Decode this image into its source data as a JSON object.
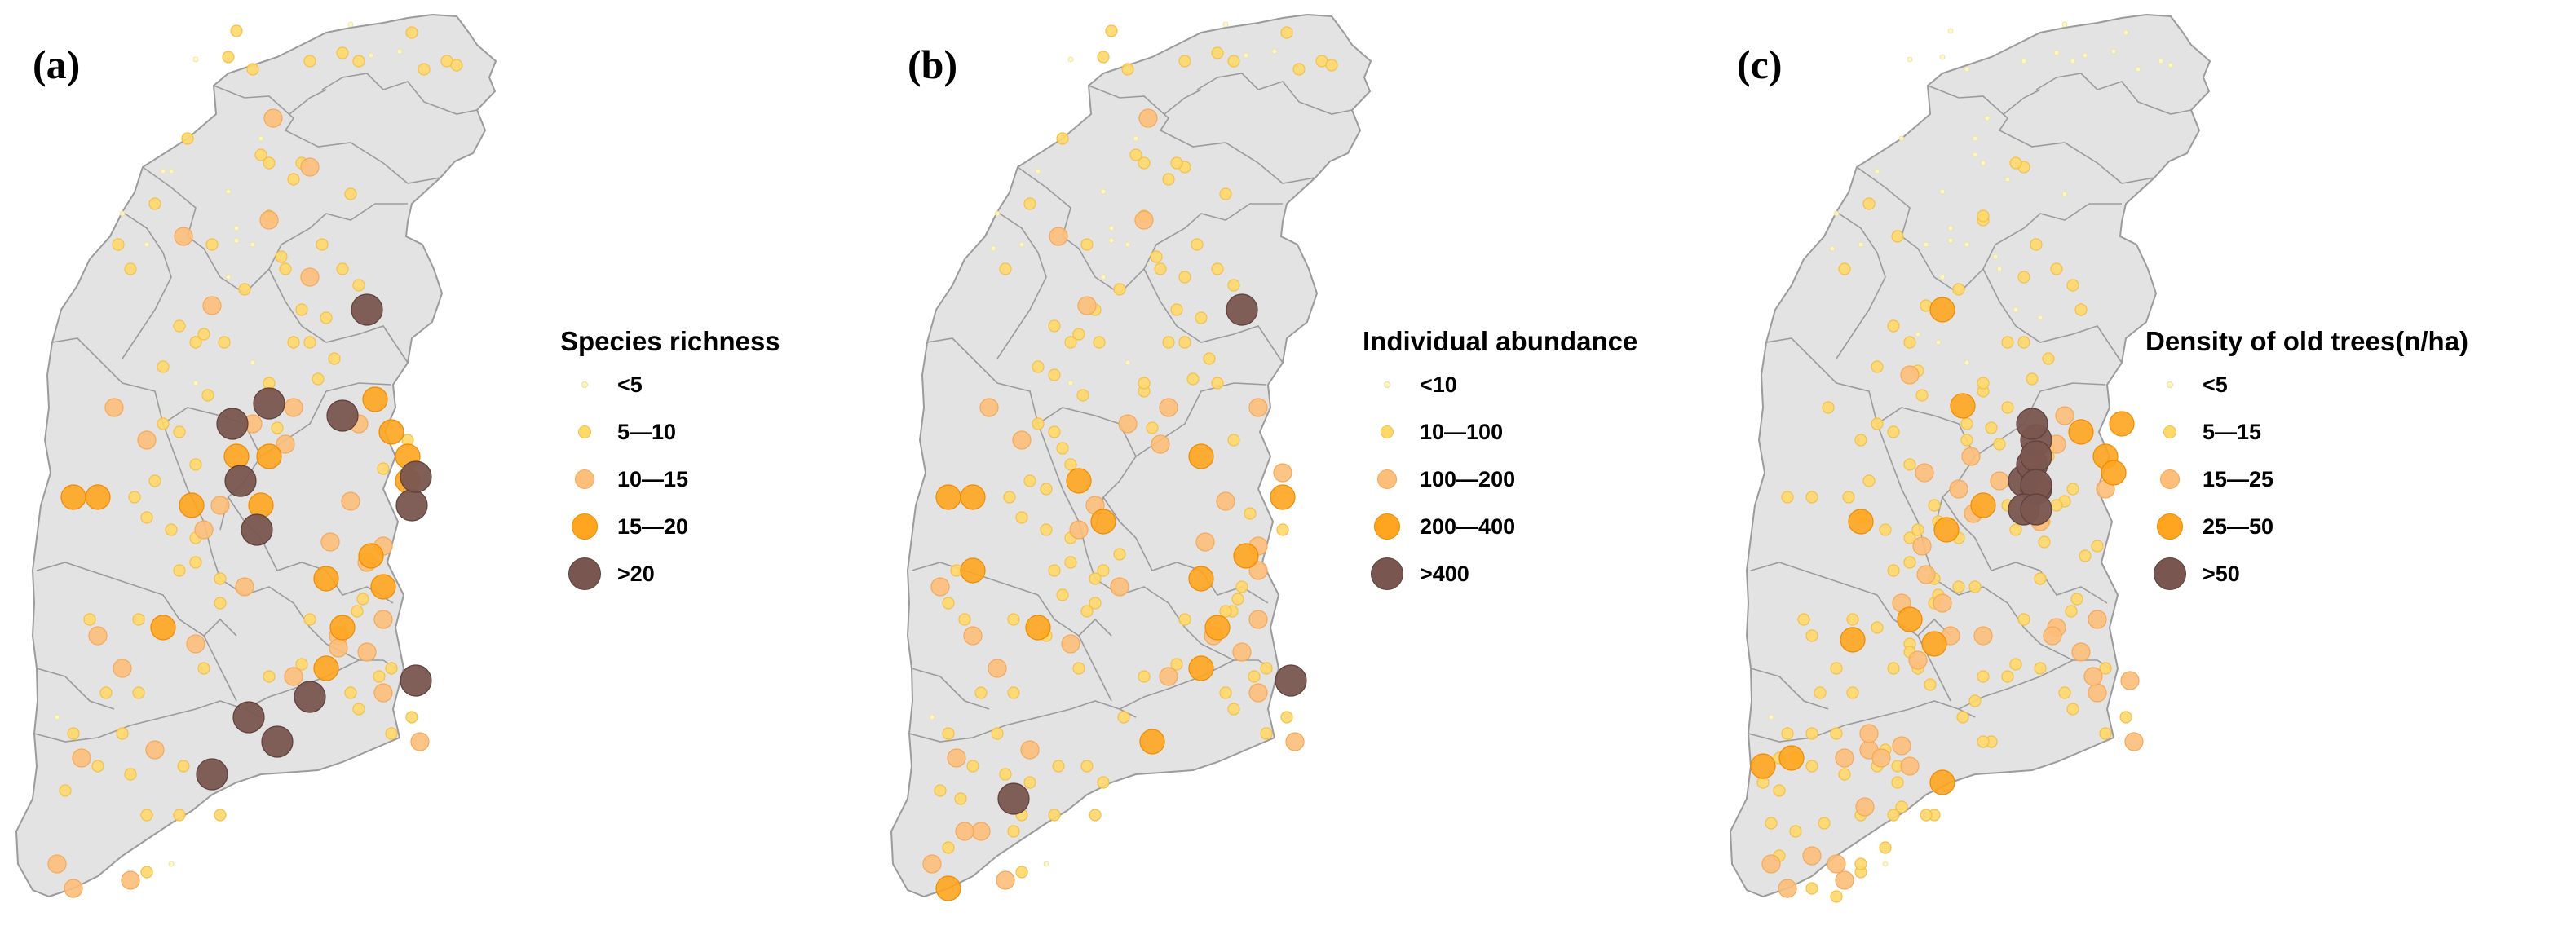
{
  "panels": [
    {
      "letter": "(a)",
      "legend": {
        "title": "Species richness",
        "classes": [
          "<5",
          "5—10",
          "10—15",
          "15—20",
          ">20"
        ]
      }
    },
    {
      "letter": "(b)",
      "legend": {
        "title": "Individual abundance",
        "classes": [
          "<10",
          "10—100",
          "100—200",
          "200—400",
          ">400"
        ]
      }
    },
    {
      "letter": "(c)",
      "legend": {
        "title": "Density of old trees(n/ha)",
        "classes": [
          "<5",
          "5—15",
          "15—25",
          "25—50",
          ">50"
        ]
      }
    }
  ],
  "symbol_classes": [
    {
      "color": "#FFF6BF",
      "stroke": "#E8DFA0"
    },
    {
      "color": "#FFD86A",
      "stroke": "#F2C04A"
    },
    {
      "color": "#FDBE7A",
      "stroke": "#F3A95A"
    },
    {
      "color": "#FFA51F",
      "stroke": "#F08A00"
    },
    {
      "color": "#7A5650",
      "stroke": "#5E3F3A"
    }
  ],
  "map_style": {
    "fill": "#E3E3E3",
    "boundary": "#9B9B9B"
  }
}
